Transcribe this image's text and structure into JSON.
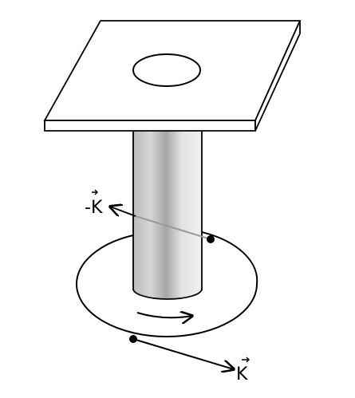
{
  "labels": {
    "minus_k": "-K",
    "k": "K"
  }
}
